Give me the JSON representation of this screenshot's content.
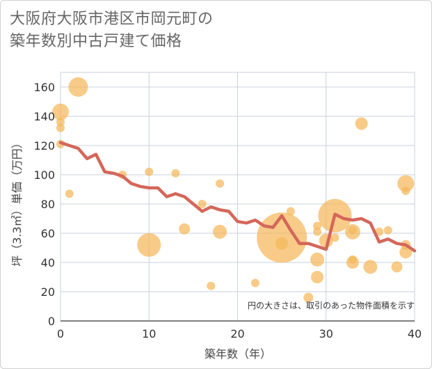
{
  "chart_data": {
    "type": "scatter",
    "title_lines": [
      "大阪府大阪市港区市岡元町の",
      "築年数別中古戸建て価格"
    ],
    "xlabel": "築年数（年）",
    "ylabel": "坪（3.3㎡）単価（万円）",
    "xlim": [
      0,
      40
    ],
    "ylim": [
      0,
      170
    ],
    "x_ticks": [
      0,
      10,
      20,
      30,
      40
    ],
    "y_ticks": [
      0,
      20,
      40,
      60,
      80,
      100,
      120,
      140,
      160
    ],
    "grid": true,
    "note": "円の大きさは、取引のあった物件面積を示す",
    "colors": {
      "bubble": "#f5b75a",
      "line": "#d4675a",
      "grid": "#c8d2dc"
    },
    "bubbles": [
      {
        "x": 0,
        "y": 143,
        "size": 12
      },
      {
        "x": 0,
        "y": 136,
        "size": 6
      },
      {
        "x": 0,
        "y": 132,
        "size": 6
      },
      {
        "x": 0,
        "y": 121,
        "size": 6
      },
      {
        "x": 1,
        "y": 87,
        "size": 6
      },
      {
        "x": 2,
        "y": 160,
        "size": 14
      },
      {
        "x": 7,
        "y": 100,
        "size": 6
      },
      {
        "x": 10,
        "y": 52,
        "size": 17
      },
      {
        "x": 10,
        "y": 102,
        "size": 6
      },
      {
        "x": 13,
        "y": 101,
        "size": 6
      },
      {
        "x": 14,
        "y": 63,
        "size": 8
      },
      {
        "x": 16,
        "y": 80,
        "size": 6
      },
      {
        "x": 17,
        "y": 24,
        "size": 6
      },
      {
        "x": 18,
        "y": 94,
        "size": 6
      },
      {
        "x": 18,
        "y": 61,
        "size": 10
      },
      {
        "x": 22,
        "y": 26,
        "size": 6
      },
      {
        "x": 25,
        "y": 57,
        "size": 36
      },
      {
        "x": 25,
        "y": 53,
        "size": 9
      },
      {
        "x": 26,
        "y": 75,
        "size": 6
      },
      {
        "x": 28,
        "y": 16,
        "size": 7
      },
      {
        "x": 29,
        "y": 65,
        "size": 6
      },
      {
        "x": 29,
        "y": 61,
        "size": 6
      },
      {
        "x": 29,
        "y": 42,
        "size": 10
      },
      {
        "x": 29,
        "y": 30,
        "size": 9
      },
      {
        "x": 30,
        "y": 55,
        "size": 10
      },
      {
        "x": 31,
        "y": 72,
        "size": 24
      },
      {
        "x": 31,
        "y": 57,
        "size": 6
      },
      {
        "x": 33,
        "y": 61,
        "size": 11
      },
      {
        "x": 33,
        "y": 62,
        "size": 6
      },
      {
        "x": 33,
        "y": 42,
        "size": 6
      },
      {
        "x": 33,
        "y": 40,
        "size": 9
      },
      {
        "x": 34,
        "y": 135,
        "size": 9
      },
      {
        "x": 35,
        "y": 37,
        "size": 10
      },
      {
        "x": 36,
        "y": 61,
        "size": 6
      },
      {
        "x": 37,
        "y": 62,
        "size": 6
      },
      {
        "x": 38,
        "y": 37,
        "size": 8
      },
      {
        "x": 39,
        "y": 94,
        "size": 12
      },
      {
        "x": 39,
        "y": 89,
        "size": 6
      },
      {
        "x": 39,
        "y": 52,
        "size": 7
      },
      {
        "x": 39,
        "y": 47,
        "size": 9
      }
    ],
    "trend": {
      "x": [
        0,
        1,
        2,
        3,
        4,
        5,
        6,
        7,
        8,
        9,
        10,
        11,
        12,
        13,
        14,
        15,
        16,
        17,
        18,
        19,
        20,
        21,
        22,
        23,
        24,
        25,
        26,
        27,
        28,
        29,
        30,
        31,
        32,
        33,
        34,
        35,
        36,
        37,
        38,
        39,
        40
      ],
      "y": [
        122,
        120,
        118,
        111,
        114,
        102,
        101,
        99,
        94,
        92,
        91,
        91,
        85,
        87,
        85,
        80,
        75,
        78,
        76,
        75,
        68,
        67,
        69,
        65,
        64,
        72,
        62,
        53,
        53,
        51,
        49,
        73,
        70,
        69,
        70,
        67,
        54,
        56,
        53,
        52,
        48
      ]
    }
  }
}
